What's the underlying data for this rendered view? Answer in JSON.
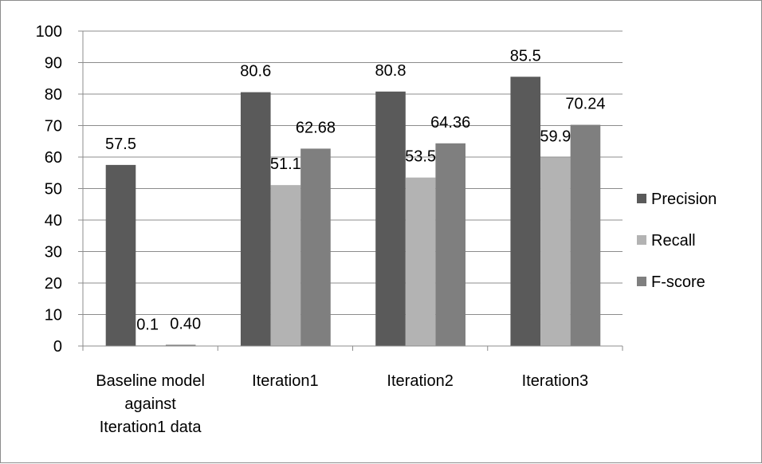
{
  "chart_data": {
    "type": "bar",
    "title": "",
    "xlabel": "",
    "ylabel": "",
    "ylim": [
      0,
      100
    ],
    "yticks": [
      0,
      10,
      20,
      30,
      40,
      50,
      60,
      70,
      80,
      90,
      100
    ],
    "grid": true,
    "legend_position": "right",
    "categories": [
      [
        "Baseline model",
        "against",
        "Iteration1 data"
      ],
      [
        "Iteration1"
      ],
      [
        "Iteration2"
      ],
      [
        "Iteration3"
      ]
    ],
    "series": [
      {
        "name": "Precision",
        "color": "#5a5a5a",
        "values": [
          57.5,
          80.6,
          80.8,
          85.5
        ],
        "labels": [
          "57.5",
          "80.6",
          "80.8",
          "85.5"
        ]
      },
      {
        "name": "Recall",
        "color": "#b3b3b3",
        "values": [
          0.1,
          51.1,
          53.5,
          59.9
        ],
        "labels": [
          "0.1",
          "51.1",
          "53.5",
          "59.9"
        ]
      },
      {
        "name": "F-score",
        "color": "#7f7f7f",
        "values": [
          0.4,
          62.68,
          64.36,
          70.24
        ],
        "labels": [
          "0.40",
          "62.68",
          "64.36",
          "70.24"
        ]
      }
    ]
  }
}
